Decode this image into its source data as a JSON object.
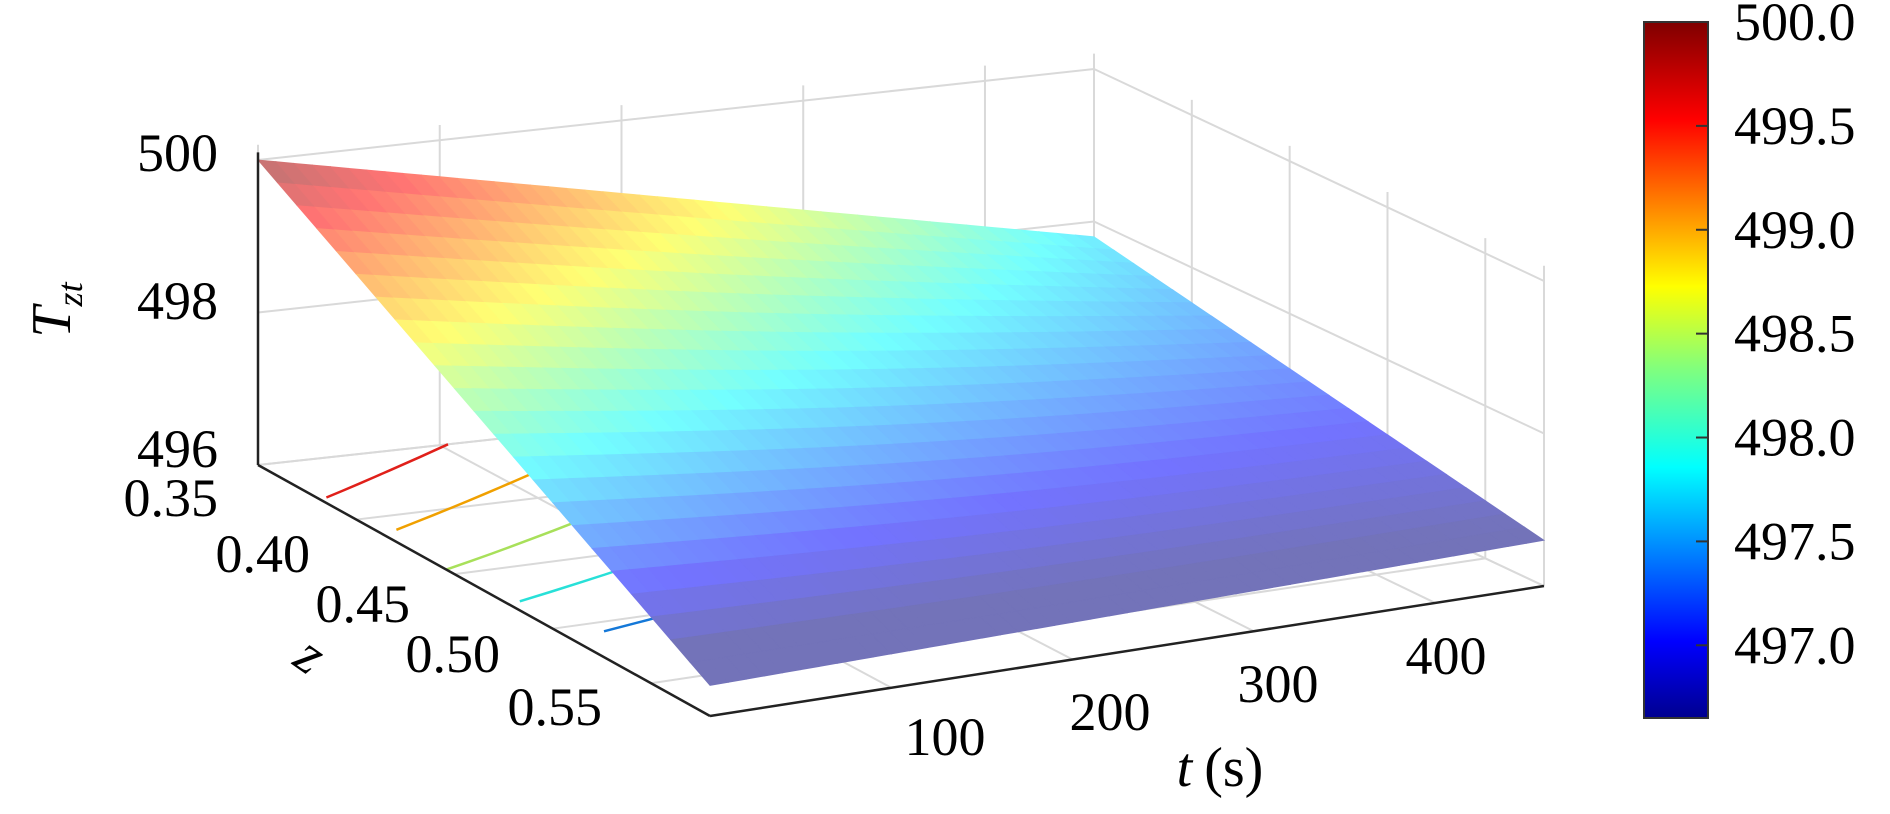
{
  "chart_data": {
    "type": "surface3d",
    "title": "",
    "zlabel": {
      "main": "T",
      "sub": "zt"
    },
    "xlabel": {
      "main": "t",
      "unit": "(s)"
    },
    "ylabel": "z",
    "z_ticks": [
      "500",
      "498",
      "496"
    ],
    "y_ticks": [
      "0.35",
      "0.40",
      "0.45",
      "0.50",
      "0.55"
    ],
    "x_ticks": [
      "100",
      "200",
      "300",
      "400"
    ],
    "zlim": [
      496,
      500
    ],
    "ylim": [
      0.35,
      0.58
    ],
    "xlim": [
      0,
      460
    ],
    "grid": true,
    "colormap": "jet",
    "colorbar": {
      "range": [
        496.65,
        500.0
      ],
      "ticks": [
        "500.0",
        "499.5",
        "499.0",
        "498.5",
        "498.0",
        "497.5",
        "497.0"
      ],
      "tick_values": [
        500.0,
        499.5,
        499.0,
        498.5,
        498.0,
        497.5,
        497.0
      ],
      "placement": "right"
    },
    "surface_corners": {
      "t0_z0.35": 500.0,
      "t0_z0.58": 496.4,
      "t460_z0.35": 497.8,
      "t460_z0.58": 496.6
    },
    "contours": [
      {
        "level": 500.0,
        "color": "#800000"
      },
      {
        "level": 499.5,
        "color": "#e0201a"
      },
      {
        "level": 499.0,
        "color": "#f0a000"
      },
      {
        "level": 498.5,
        "color": "#a8e05a"
      },
      {
        "level": 498.0,
        "color": "#28e0d8"
      },
      {
        "level": 497.5,
        "color": "#1478d8"
      }
    ]
  }
}
